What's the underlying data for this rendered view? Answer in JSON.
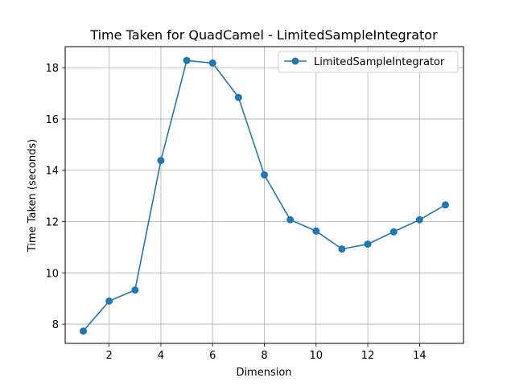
{
  "chart_data": {
    "type": "line",
    "title": "Time Taken for QuadCamel - LimitedSampleIntegrator",
    "xlabel": "Dimension",
    "ylabel": "Time Taken (seconds)",
    "xlim": [
      0.3,
      15.7
    ],
    "ylim": [
      7.25,
      18.82
    ],
    "xticks": [
      2,
      4,
      6,
      8,
      10,
      12,
      14
    ],
    "yticks": [
      8,
      10,
      12,
      14,
      16,
      18
    ],
    "grid": true,
    "legend_position": "top-right",
    "colors": {
      "series": "#1f77b4",
      "grid": "#b0b0b0"
    },
    "series": [
      {
        "name": "LimitedSampleIntegrator",
        "x": [
          1,
          2,
          3,
          4,
          5,
          6,
          7,
          8,
          9,
          10,
          11,
          12,
          13,
          14,
          15
        ],
        "y": [
          7.73,
          8.9,
          9.33,
          14.38,
          18.28,
          18.18,
          16.84,
          13.82,
          12.07,
          11.63,
          10.93,
          11.12,
          11.6,
          12.07,
          12.65
        ]
      }
    ]
  }
}
